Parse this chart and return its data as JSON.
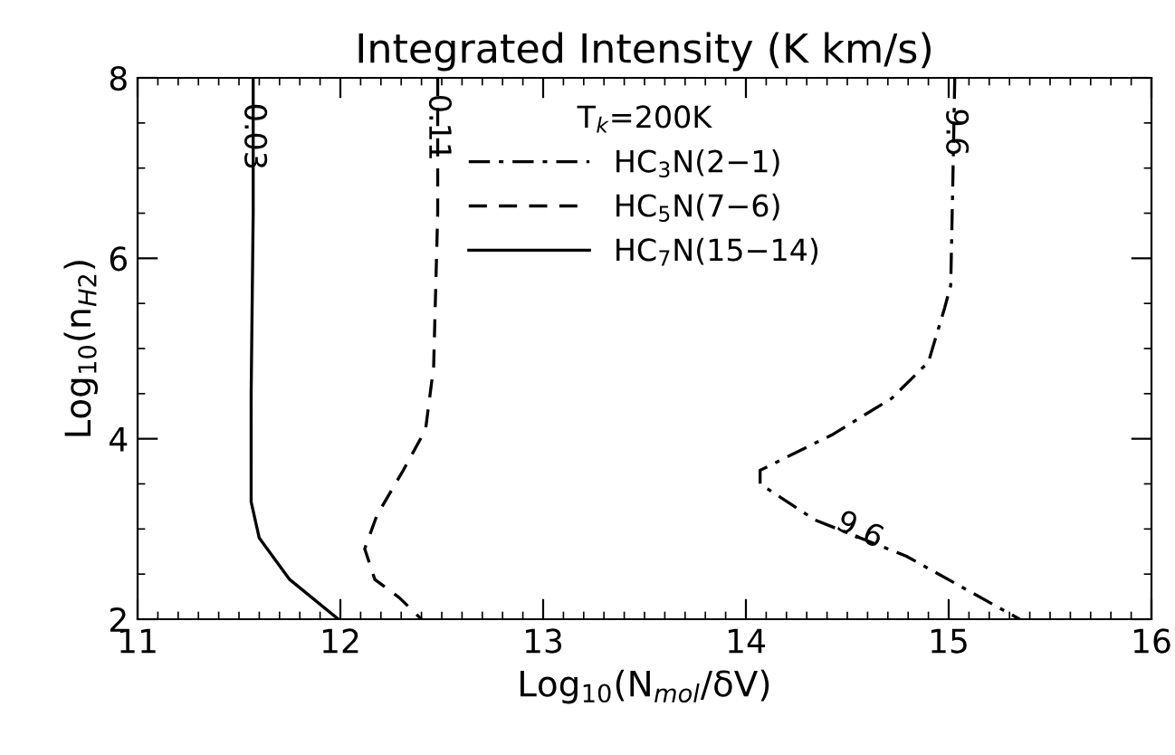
{
  "chart_data": {
    "type": "line",
    "title": "Integrated Intensity (K km/s)",
    "xlabel": "Log$_{10}$(N$_{mol}$/δV)",
    "ylabel": "Log$_{10}$(n$_{H2}$)",
    "legend_title": "T$_{k}$=200K",
    "legend": "top",
    "grid": false,
    "marker": "none",
    "xlim": [
      11,
      16
    ],
    "xticks": [
      11,
      12,
      13,
      14,
      15,
      16
    ],
    "ylim": [
      2,
      8
    ],
    "yticks": [
      2,
      4,
      6,
      8
    ],
    "series": [
      {
        "name": "HC$_{3}$N(2−1)",
        "color": "#000000",
        "line_style": "dashdot",
        "x": [
          15.03,
          15.02,
          15.01,
          14.98,
          14.9,
          14.72,
          14.43,
          14.07,
          14.07,
          14.34,
          14.79,
          15.35
        ],
        "values": [
          8,
          6.8,
          5.7,
          5.45,
          4.85,
          4.45,
          4.05,
          3.65,
          3.5,
          3.1,
          2.7,
          2
        ]
      },
      {
        "name": "HC$_{5}$N(7−6)",
        "color": "#000000",
        "line_style": "dashed",
        "x": [
          12.48,
          12.48,
          12.46,
          12.42,
          12.31,
          12.18,
          12.12,
          12.17,
          12.29,
          12.4
        ],
        "values": [
          8,
          6.5,
          4.8,
          4.1,
          3.65,
          3.15,
          2.78,
          2.44,
          2.24,
          2
        ]
      },
      {
        "name": "HC$_{7}$N(15−14)",
        "color": "#000000",
        "line_style": "solid",
        "x": [
          11.57,
          11.57,
          11.56,
          11.56,
          11.6,
          11.75,
          11.99
        ],
        "values": [
          8,
          6.5,
          4.5,
          3.3,
          2.9,
          2.44,
          2
        ]
      }
    ],
    "annotations": [
      {
        "text": "0.03",
        "x": 11.57,
        "y": 7.35
      },
      {
        "text": "0.11",
        "x": 12.48,
        "y": 7.45
      },
      {
        "text": "9.6",
        "x": 15.03,
        "y": 7.4
      },
      {
        "text": "9.6",
        "x": 14.56,
        "y": 2.98
      }
    ]
  }
}
